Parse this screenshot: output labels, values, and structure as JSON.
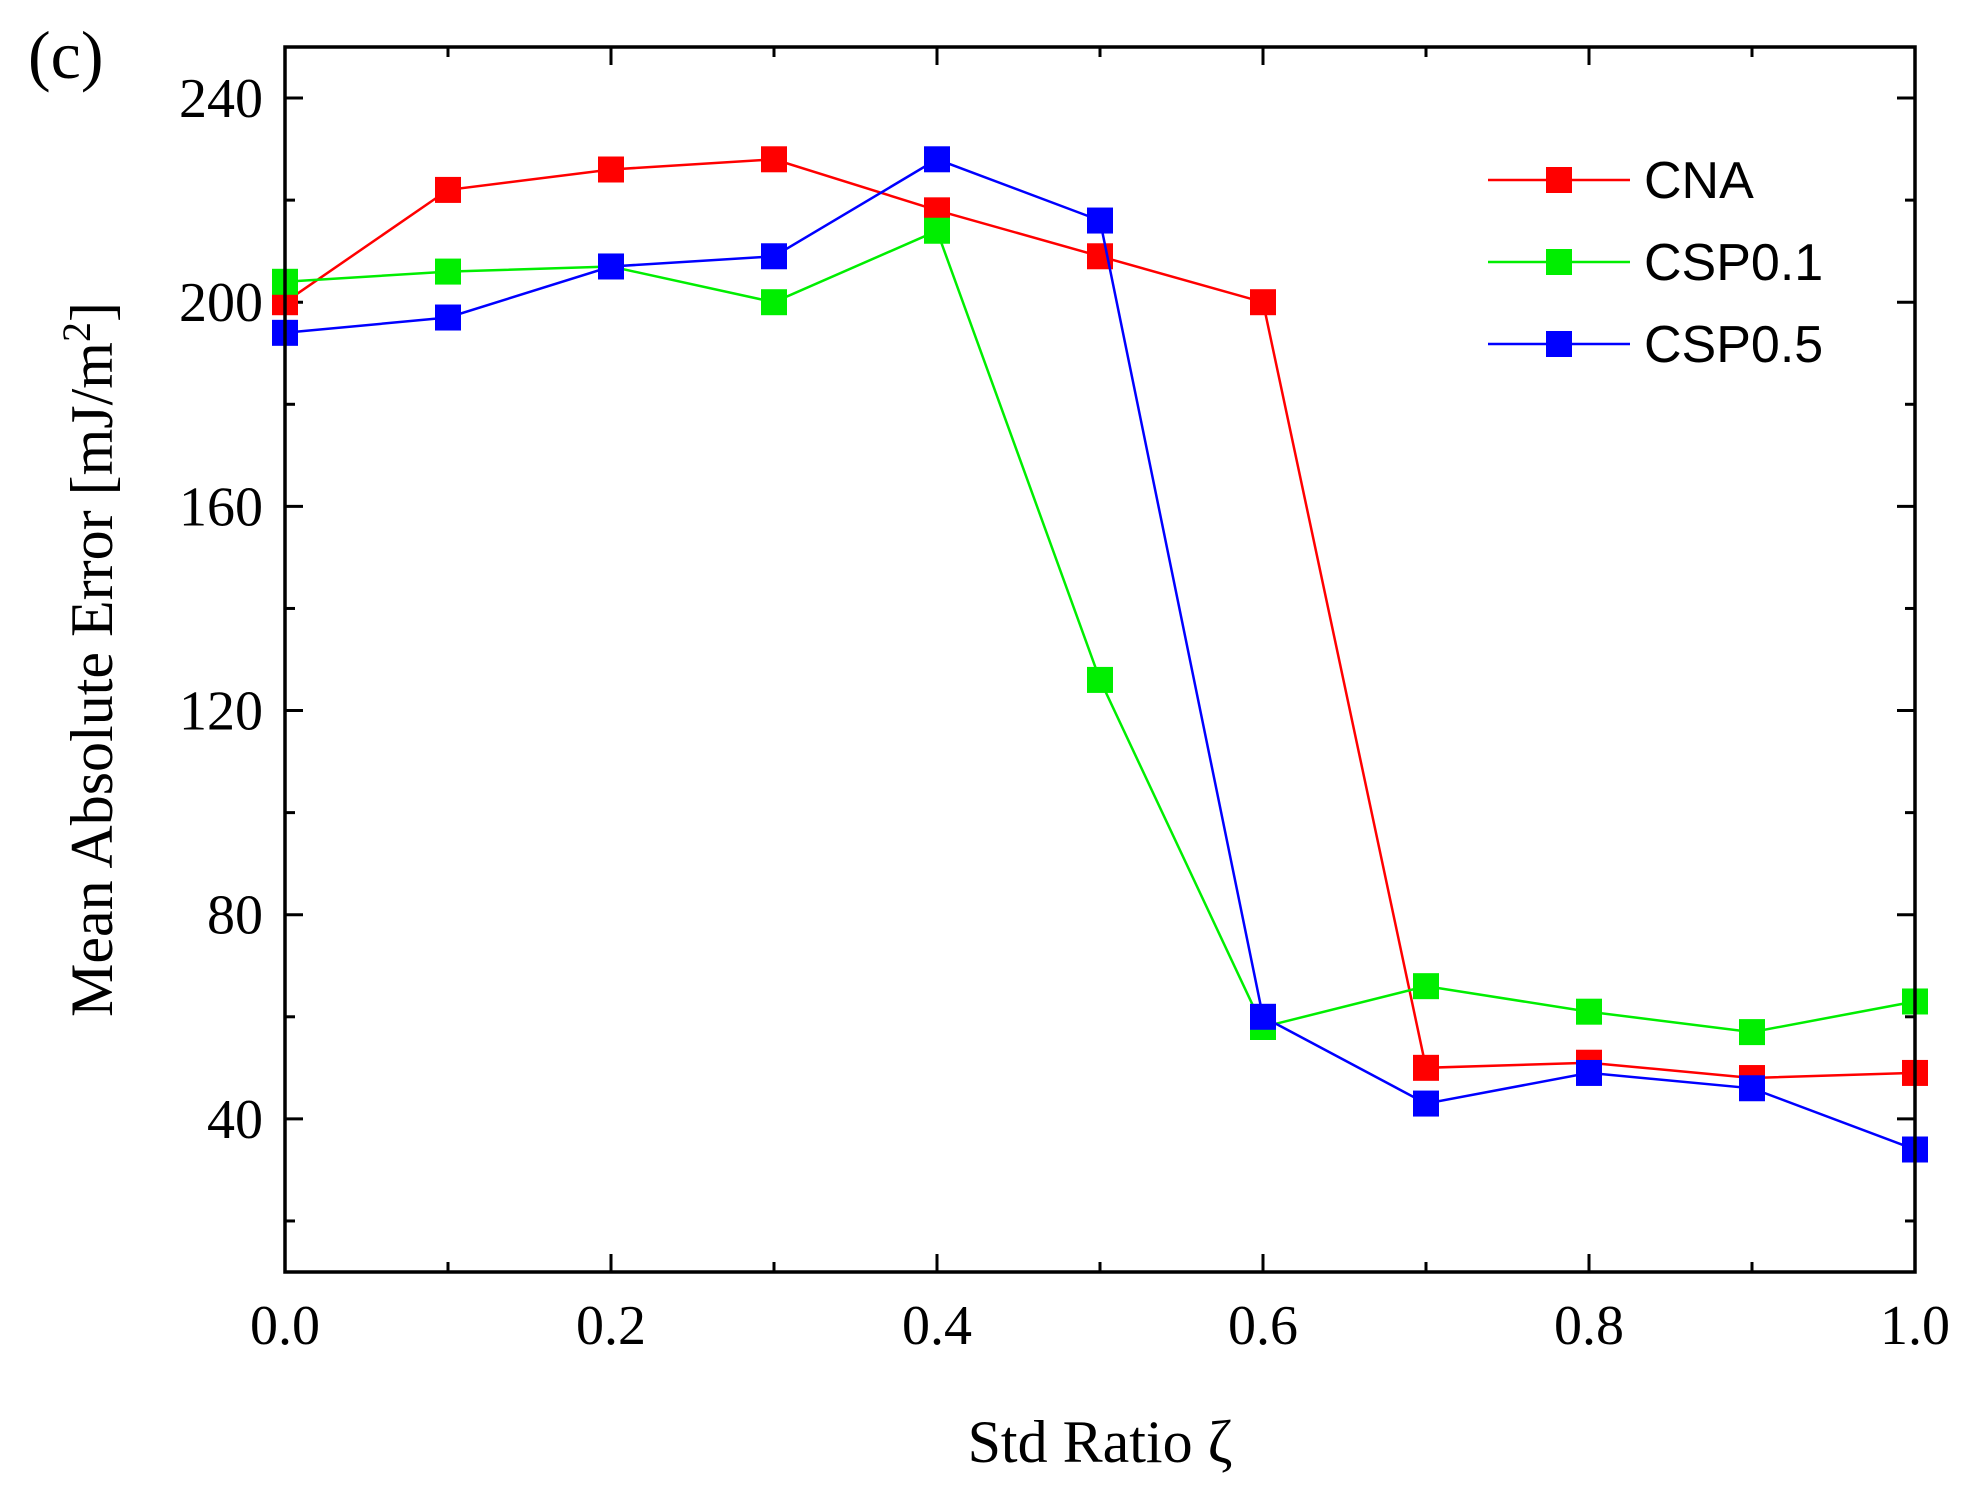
{
  "chart_data": {
    "type": "line",
    "panel_label": "(c)",
    "xlabel": "Std Ratio ζ",
    "ylabel": "Mean Absolute Error [mJ/m",
    "ylabel_sup": "2",
    "ylabel_close": "]",
    "xlim": [
      0.0,
      1.0
    ],
    "ylim": [
      10,
      250
    ],
    "xticks": [
      0.0,
      0.2,
      0.4,
      0.6,
      0.8,
      1.0
    ],
    "xtick_labels": [
      "0.0",
      "0.2",
      "0.4",
      "0.6",
      "0.8",
      "1.0"
    ],
    "yticks": [
      40,
      80,
      120,
      160,
      200,
      240
    ],
    "ytick_labels": [
      "40",
      "80",
      "120",
      "160",
      "200",
      "240"
    ],
    "x": [
      0.0,
      0.1,
      0.2,
      0.3,
      0.4,
      0.5,
      0.6,
      0.7,
      0.8,
      0.9,
      1.0
    ],
    "series": [
      {
        "name": "CNA",
        "color": "#ff0000",
        "values": [
          200,
          222,
          226,
          228,
          218,
          209,
          200,
          50,
          51,
          48,
          49
        ]
      },
      {
        "name": "CSP0.1",
        "color": "#00ee00",
        "values": [
          204,
          206,
          207,
          200,
          214,
          126,
          58,
          66,
          61,
          57,
          63
        ]
      },
      {
        "name": "CSP0.5",
        "color": "#0000ff",
        "values": [
          194,
          197,
          207,
          209,
          228,
          216,
          60,
          43,
          49,
          46,
          34
        ]
      }
    ],
    "legend_position": "top-right",
    "grid": false
  }
}
